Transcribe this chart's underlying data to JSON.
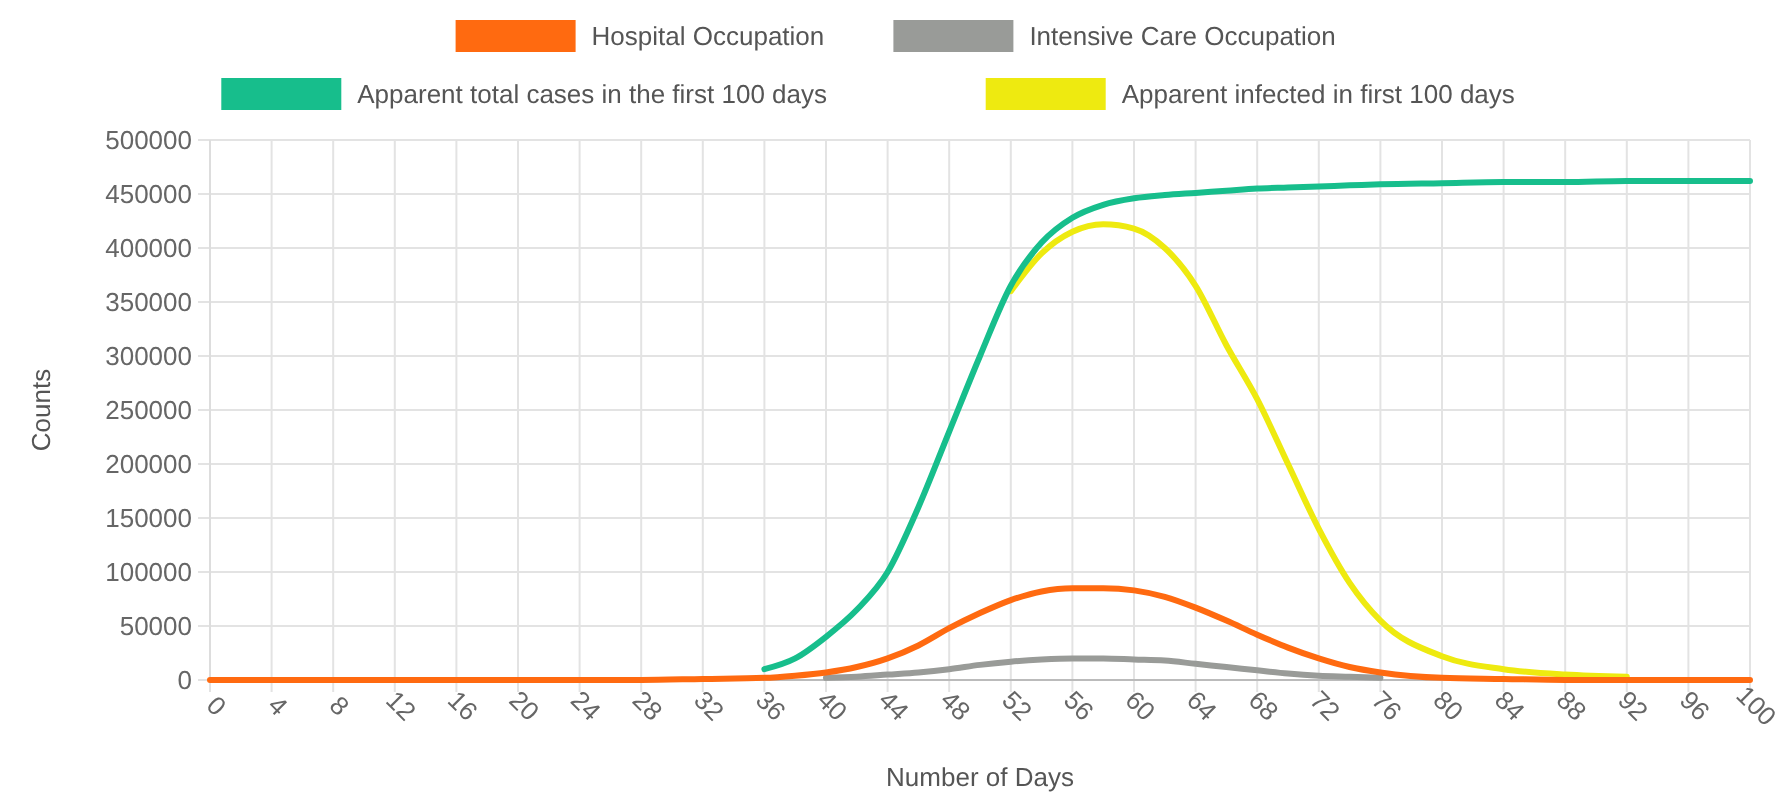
{
  "chart_data": {
    "type": "line",
    "xlabel": "Number of Days",
    "ylabel": "Counts",
    "x": [
      0,
      4,
      8,
      12,
      16,
      20,
      24,
      28,
      32,
      36,
      38,
      40,
      42,
      44,
      46,
      48,
      50,
      52,
      54,
      56,
      58,
      60,
      62,
      64,
      66,
      68,
      70,
      72,
      74,
      76,
      80,
      84,
      88,
      92,
      96,
      100
    ],
    "xlim": [
      0,
      100
    ],
    "xticks": [
      0,
      4,
      8,
      12,
      16,
      20,
      24,
      28,
      32,
      36,
      40,
      44,
      48,
      52,
      56,
      60,
      64,
      68,
      72,
      76,
      80,
      84,
      88,
      92,
      96,
      100
    ],
    "ylim": [
      0,
      500000
    ],
    "yticks": [
      0,
      50000,
      100000,
      150000,
      200000,
      250000,
      300000,
      350000,
      400000,
      450000,
      500000
    ],
    "grid": true,
    "legend": "top",
    "marker": "none",
    "line_style": "solid",
    "series": [
      {
        "name": "Hospital Occupation",
        "color": "#ff6a10",
        "values": [
          0,
          0,
          0,
          0,
          0,
          0,
          0,
          0,
          1000,
          2000,
          4000,
          7000,
          12000,
          20000,
          32000,
          48000,
          62000,
          74000,
          82000,
          85000,
          85000,
          83000,
          77000,
          67000,
          55000,
          42000,
          30000,
          20000,
          12000,
          7000,
          2000,
          1000,
          0,
          0,
          0,
          0
        ]
      },
      {
        "name": "Intensive Care Occupation",
        "color": "#999b98",
        "values": [
          null,
          null,
          null,
          null,
          null,
          null,
          null,
          null,
          null,
          null,
          null,
          2000,
          3000,
          5000,
          7000,
          10000,
          14000,
          17000,
          19000,
          20000,
          20000,
          19000,
          18000,
          15000,
          12000,
          9000,
          6000,
          4000,
          3000,
          2000,
          null,
          null,
          null,
          null,
          null,
          null
        ]
      },
      {
        "name": "Apparent total cases in the first 100 days",
        "color": "#17be8c",
        "values": [
          null,
          null,
          null,
          null,
          null,
          null,
          null,
          null,
          null,
          10000,
          20000,
          40000,
          65000,
          100000,
          160000,
          230000,
          300000,
          365000,
          405000,
          428000,
          440000,
          446000,
          449000,
          451000,
          453000,
          455000,
          456000,
          457000,
          458000,
          459000,
          460000,
          461000,
          461000,
          462000,
          462000,
          462000
        ]
      },
      {
        "name": "Apparent infected in first 100 days",
        "color": "#eeea10",
        "values": [
          null,
          null,
          null,
          null,
          null,
          null,
          null,
          null,
          null,
          null,
          null,
          null,
          null,
          null,
          null,
          null,
          null,
          360000,
          395000,
          415000,
          422000,
          418000,
          400000,
          365000,
          310000,
          260000,
          200000,
          140000,
          90000,
          55000,
          22000,
          10000,
          5000,
          3000,
          null,
          null
        ]
      }
    ]
  }
}
